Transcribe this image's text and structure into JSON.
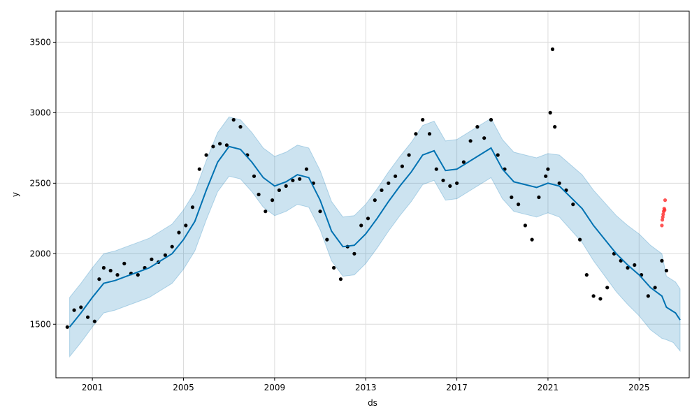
{
  "chart_data": {
    "type": "scatter",
    "title": "",
    "xlabel": "ds",
    "ylabel": "y",
    "xlim": [
      1999.4,
      2027.2
    ],
    "ylim": [
      1120,
      3720
    ],
    "grid": true,
    "x_ticks": [
      {
        "value": 2001,
        "label": "2001"
      },
      {
        "value": 2005,
        "label": "2005"
      },
      {
        "value": 2009,
        "label": "2009"
      },
      {
        "value": 2013,
        "label": "2013"
      },
      {
        "value": 2017,
        "label": "2017"
      },
      {
        "value": 2021,
        "label": "2021"
      },
      {
        "value": 2025,
        "label": "2025"
      }
    ],
    "y_ticks": [
      {
        "value": 1500,
        "label": "1500"
      },
      {
        "value": 2000,
        "label": "2000"
      },
      {
        "value": 2500,
        "label": "2500"
      },
      {
        "value": 3000,
        "label": "3000"
      },
      {
        "value": 3500,
        "label": "3500"
      }
    ],
    "colors": {
      "actual": "#000000",
      "forecast": "#0072b2",
      "interval": "#0072b2",
      "recent": "#ff2a2a",
      "grid": "#dcdcdc"
    },
    "forecast": {
      "x": [
        2000.0,
        2000.5,
        2001.0,
        2001.5,
        2002.0,
        2002.5,
        2003.0,
        2003.5,
        2004.0,
        2004.5,
        2005.0,
        2005.5,
        2006.0,
        2006.5,
        2007.0,
        2007.5,
        2008.0,
        2008.5,
        2009.0,
        2009.5,
        2010.0,
        2010.5,
        2011.0,
        2011.5,
        2012.0,
        2012.5,
        2013.0,
        2013.5,
        2014.0,
        2014.5,
        2015.0,
        2015.5,
        2016.0,
        2016.5,
        2017.0,
        2017.5,
        2018.0,
        2018.5,
        2019.0,
        2019.5,
        2020.0,
        2020.5,
        2021.0,
        2021.5,
        2022.0,
        2022.5,
        2023.0,
        2023.5,
        2024.0,
        2024.5,
        2025.0,
        2025.5,
        2026.0,
        2026.2,
        2026.5,
        2026.6,
        2026.8
      ],
      "yhat": [
        1480,
        1580,
        1690,
        1790,
        1810,
        1840,
        1870,
        1900,
        1950,
        2000,
        2100,
        2230,
        2450,
        2650,
        2760,
        2740,
        2650,
        2540,
        2480,
        2510,
        2560,
        2540,
        2380,
        2160,
        2050,
        2060,
        2140,
        2250,
        2370,
        2480,
        2580,
        2700,
        2730,
        2590,
        2600,
        2650,
        2700,
        2750,
        2600,
        2510,
        2490,
        2470,
        2500,
        2480,
        2400,
        2320,
        2200,
        2100,
        2000,
        1920,
        1850,
        1760,
        1700,
        1620,
        1590,
        1580,
        1530
      ],
      "lower": [
        1270,
        1370,
        1480,
        1580,
        1600,
        1630,
        1660,
        1690,
        1740,
        1790,
        1890,
        2020,
        2240,
        2440,
        2550,
        2530,
        2440,
        2330,
        2270,
        2300,
        2350,
        2330,
        2170,
        1950,
        1840,
        1850,
        1930,
        2040,
        2160,
        2270,
        2370,
        2490,
        2520,
        2380,
        2390,
        2440,
        2490,
        2540,
        2390,
        2300,
        2280,
        2260,
        2290,
        2260,
        2170,
        2080,
        1950,
        1840,
        1730,
        1640,
        1560,
        1460,
        1400,
        1390,
        1370,
        1350,
        1310
      ],
      "upper": [
        1690,
        1790,
        1900,
        2000,
        2020,
        2050,
        2080,
        2110,
        2160,
        2210,
        2310,
        2440,
        2660,
        2860,
        2970,
        2950,
        2860,
        2750,
        2690,
        2720,
        2770,
        2750,
        2590,
        2370,
        2260,
        2270,
        2350,
        2460,
        2580,
        2690,
        2790,
        2910,
        2940,
        2800,
        2810,
        2860,
        2910,
        2960,
        2810,
        2720,
        2700,
        2680,
        2710,
        2700,
        2630,
        2560,
        2450,
        2360,
        2270,
        2200,
        2140,
        2060,
        2000,
        1840,
        1810,
        1800,
        1750
      ]
    },
    "actual": {
      "x": [
        1999.9,
        2000.2,
        2000.5,
        2000.8,
        2001.1,
        2001.3,
        2001.5,
        2001.8,
        2002.1,
        2002.4,
        2002.7,
        2003.0,
        2003.3,
        2003.6,
        2003.9,
        2004.2,
        2004.5,
        2004.8,
        2005.1,
        2005.4,
        2005.7,
        2006.0,
        2006.3,
        2006.6,
        2006.9,
        2007.2,
        2007.5,
        2007.8,
        2008.1,
        2008.3,
        2008.6,
        2008.9,
        2009.2,
        2009.5,
        2009.8,
        2010.1,
        2010.4,
        2010.7,
        2011.0,
        2011.3,
        2011.6,
        2011.9,
        2012.2,
        2012.5,
        2012.8,
        2013.1,
        2013.4,
        2013.7,
        2014.0,
        2014.3,
        2014.6,
        2014.9,
        2015.2,
        2015.5,
        2015.8,
        2016.1,
        2016.4,
        2016.7,
        2017.0,
        2017.3,
        2017.6,
        2017.9,
        2018.2,
        2018.5,
        2018.8,
        2019.1,
        2019.4,
        2019.7,
        2020.0,
        2020.3,
        2020.6,
        2020.9,
        2021.0,
        2021.1,
        2021.2,
        2021.3,
        2021.5,
        2021.8,
        2022.1,
        2022.4,
        2022.7,
        2023.0,
        2023.3,
        2023.6,
        2023.9,
        2024.2,
        2024.5,
        2024.8,
        2025.1,
        2025.4,
        2025.7,
        2026.0,
        2026.2
      ],
      "y": [
        1480,
        1600,
        1620,
        1550,
        1520,
        1820,
        1900,
        1880,
        1850,
        1930,
        1860,
        1850,
        1900,
        1960,
        1940,
        1990,
        2050,
        2150,
        2200,
        2330,
        2600,
        2700,
        2760,
        2780,
        2770,
        2950,
        2900,
        2700,
        2550,
        2420,
        2300,
        2380,
        2450,
        2480,
        2520,
        2530,
        2600,
        2500,
        2300,
        2100,
        1900,
        1820,
        2050,
        2000,
        2200,
        2250,
        2380,
        2450,
        2500,
        2550,
        2620,
        2700,
        2850,
        2950,
        2850,
        2600,
        2520,
        2480,
        2500,
        2650,
        2800,
        2900,
        2820,
        2950,
        2700,
        2600,
        2400,
        2350,
        2200,
        2100,
        2400,
        2550,
        2600,
        3000,
        3450,
        2900,
        2500,
        2450,
        2350,
        2100,
        1850,
        1700,
        1680,
        1760,
        2000,
        1950,
        1900,
        1920,
        1850,
        1700,
        1760,
        1950,
        1880
      ]
    },
    "recent": {
      "x": [
        2026.0,
        2026.02,
        2026.04,
        2026.06,
        2026.08,
        2026.1,
        2026.12,
        2026.14
      ],
      "y": [
        2200,
        2240,
        2260,
        2280,
        2300,
        2320,
        2310,
        2380
      ]
    }
  }
}
